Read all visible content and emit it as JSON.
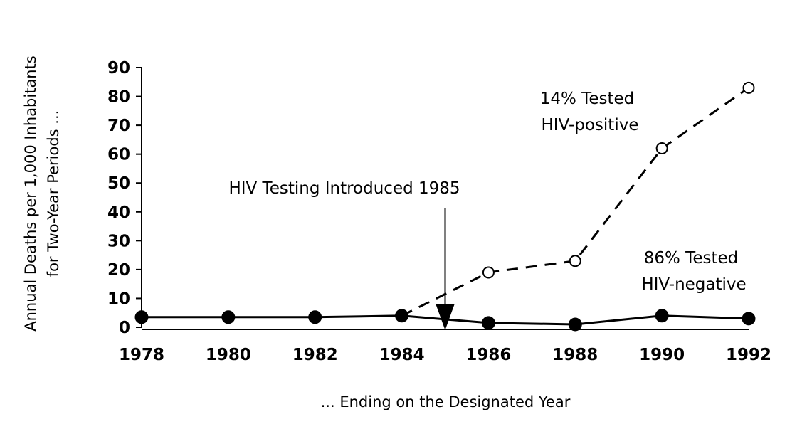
{
  "chart_data": {
    "type": "line",
    "ylabel_line1": "Annual Deaths per 1,000 Inhabitants",
    "ylabel_line2": "for Two-Year Periods ...",
    "xlabel": "... Ending on the Designated Year",
    "xlim": [
      1978,
      1992
    ],
    "ylim": [
      0,
      90
    ],
    "xticks": [
      1978,
      1980,
      1982,
      1984,
      1986,
      1988,
      1990,
      1992
    ],
    "yticks": [
      0,
      10,
      20,
      30,
      40,
      50,
      60,
      70,
      80,
      90
    ],
    "grid": false,
    "series": [
      {
        "label_line1": "14% Tested",
        "label_line2": "HIV-positive",
        "style": "dashed",
        "marker": "open-circle",
        "x": [
          1984,
          1986,
          1988,
          1990,
          1992
        ],
        "y": [
          4,
          19,
          23,
          62,
          83
        ]
      },
      {
        "label_line1": "86% Tested",
        "label_line2": "HIV-negative",
        "style": "solid",
        "marker": "filled-circle",
        "x": [
          1978,
          1980,
          1982,
          1984,
          1986,
          1988,
          1990,
          1992
        ],
        "y": [
          3.5,
          3.5,
          3.5,
          4,
          1.5,
          1,
          4,
          3
        ]
      }
    ],
    "annotation": {
      "text": "HIV Testing Introduced 1985",
      "x": 1985
    }
  }
}
